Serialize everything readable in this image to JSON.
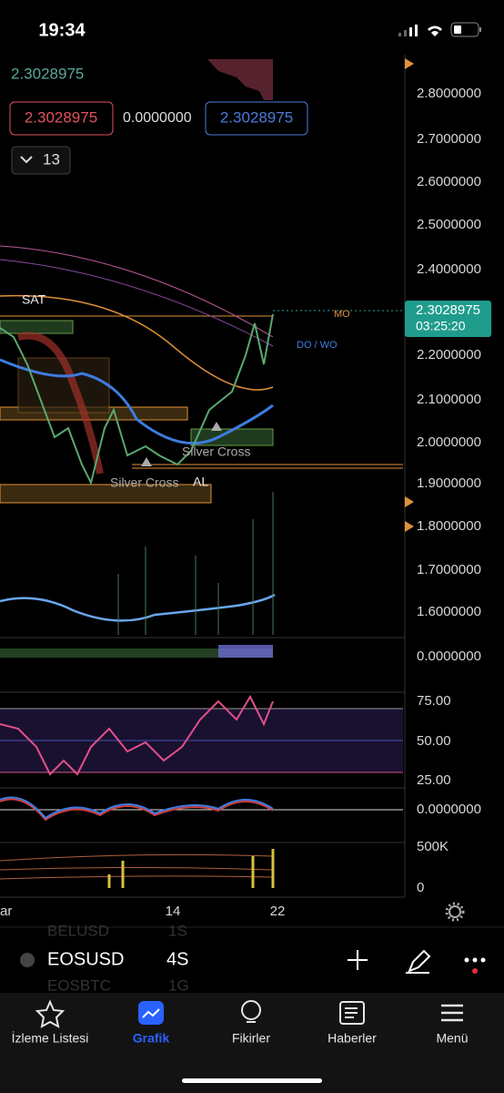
{
  "status_bar": {
    "time": "19:34"
  },
  "chart": {
    "price_label": "2.3028975",
    "ohlc": [
      "2.3028975",
      "0.0000000",
      "2.3028975"
    ],
    "collapse_count": "13",
    "price_axis": [
      "2.8000000",
      "2.7000000",
      "2.6000000",
      "2.5000000",
      "2.4000000",
      "2.2000000",
      "2.1000000",
      "2.0000000",
      "1.9000000",
      "1.8000000",
      "1.7000000",
      "1.6000000"
    ],
    "current_price": "2.3028975",
    "countdown": "03:25:20",
    "annotations": {
      "sat": "SAT",
      "mo": "MO",
      "do_wo": "DO / WO",
      "silver_cross_1": "Silver Cross",
      "silver_cross_2": "Silver Cross",
      "al": "AL"
    },
    "macd_axis": "0.0000000",
    "rsi_axis": [
      "75.00",
      "50.00",
      "25.00"
    ],
    "osc_axis": "0.0000000",
    "volume_axis": [
      "500K",
      "0"
    ],
    "time_axis": [
      "ar",
      "14",
      "22"
    ]
  },
  "symbol_bar": {
    "prev_symbol": "BELUSD",
    "prev_interval": "1S",
    "symbol": "EOSUSD",
    "interval": "4S",
    "next_symbol": "EOSBTC",
    "next_interval": "1G"
  },
  "nav": [
    "İzleme Listesi",
    "Grafik",
    "Fikirler",
    "Haberler",
    "Menü"
  ]
}
